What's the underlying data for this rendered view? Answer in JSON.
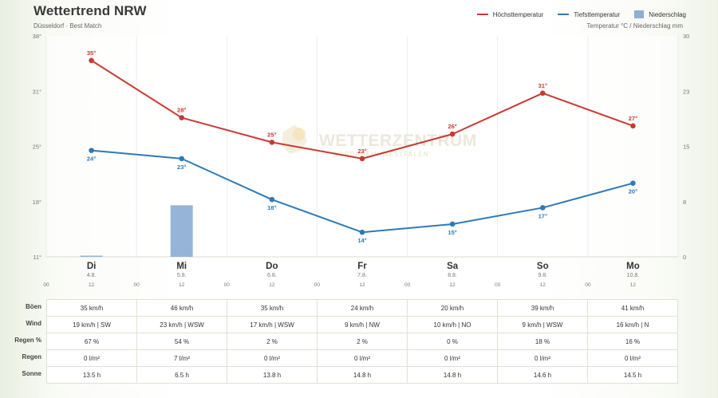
{
  "header": {
    "title": "Wettertrend NRW",
    "subtitle": "Düsseldorf · Best Match",
    "units": "Temperatur °C / Niederschlag mm"
  },
  "legend": [
    {
      "label": "Höchsttemperatur",
      "color": "#c83a32",
      "kind": "line"
    },
    {
      "label": "Tiefsttemperatur",
      "color": "#2e7ab8",
      "kind": "line"
    },
    {
      "label": "Niederschlag",
      "color": "#8fb0d6",
      "kind": "box"
    }
  ],
  "watermark": {
    "line1": "WETTERZENTRUM",
    "line2": "NORDRHEIN-WESTFALEN"
  },
  "chart_data": {
    "type": "line",
    "categories": [
      "Di",
      "Mi",
      "Do",
      "Fr",
      "Sa",
      "So",
      "Mo"
    ],
    "dates": [
      "4.8.",
      "5.8.",
      "6.8.",
      "7.8.",
      "8.8.",
      "9.8.",
      "10.8."
    ],
    "hour_labels": [
      "00",
      "12"
    ],
    "series": [
      {
        "name": "Höchsttemperatur",
        "values": [
          35,
          28,
          25,
          23,
          26,
          31,
          27
        ],
        "labels": [
          "35°",
          "28°",
          "25°",
          "23°",
          "26°",
          "31°",
          "27°"
        ],
        "color": "#c83a32"
      },
      {
        "name": "Tiefsttemperatur",
        "values": [
          24,
          23,
          18,
          14,
          15,
          17,
          20
        ],
        "labels": [
          "24°",
          "23°",
          "18°",
          "14°",
          "15°",
          "17°",
          "20°"
        ],
        "color": "#2e7ab8"
      },
      {
        "name": "Niederschlag",
        "type": "bar",
        "values": [
          0.1,
          7,
          0,
          0,
          0,
          0,
          0
        ],
        "color": "#8fb0d6"
      }
    ],
    "y_left": {
      "ticks": [
        "11°",
        "18°",
        "25°",
        "31°",
        "38°"
      ],
      "ylim": [
        11,
        38
      ]
    },
    "y_right": {
      "ticks": [
        "0",
        "8",
        "15",
        "23",
        "30"
      ],
      "ylim": [
        0,
        30
      ]
    }
  },
  "table": {
    "rows": [
      {
        "label": "Böen",
        "values": [
          "35 km/h",
          "46 km/h",
          "35 km/h",
          "24 km/h",
          "20 km/h",
          "39 km/h",
          "41 km/h"
        ]
      },
      {
        "label": "Wind",
        "values": [
          "19 km/h | SW",
          "23 km/h | WSW",
          "17 km/h | WSW",
          "9 km/h | NW",
          "10 km/h | NO",
          "9 km/h | WSW",
          "16 km/h | N"
        ]
      },
      {
        "label": "Regen %",
        "values": [
          "67 %",
          "54 %",
          "2 %",
          "2 %",
          "0 %",
          "18 %",
          "16 %"
        ]
      },
      {
        "label": "Regen",
        "values": [
          "0 l/m²",
          "7 l/m²",
          "0 l/m²",
          "0 l/m²",
          "0 l/m²",
          "0 l/m²",
          "0 l/m²"
        ]
      },
      {
        "label": "Sonne",
        "values": [
          "13.5 h",
          "6.5 h",
          "13.8 h",
          "14.8 h",
          "14.8 h",
          "14.6 h",
          "14.5 h"
        ]
      }
    ]
  }
}
